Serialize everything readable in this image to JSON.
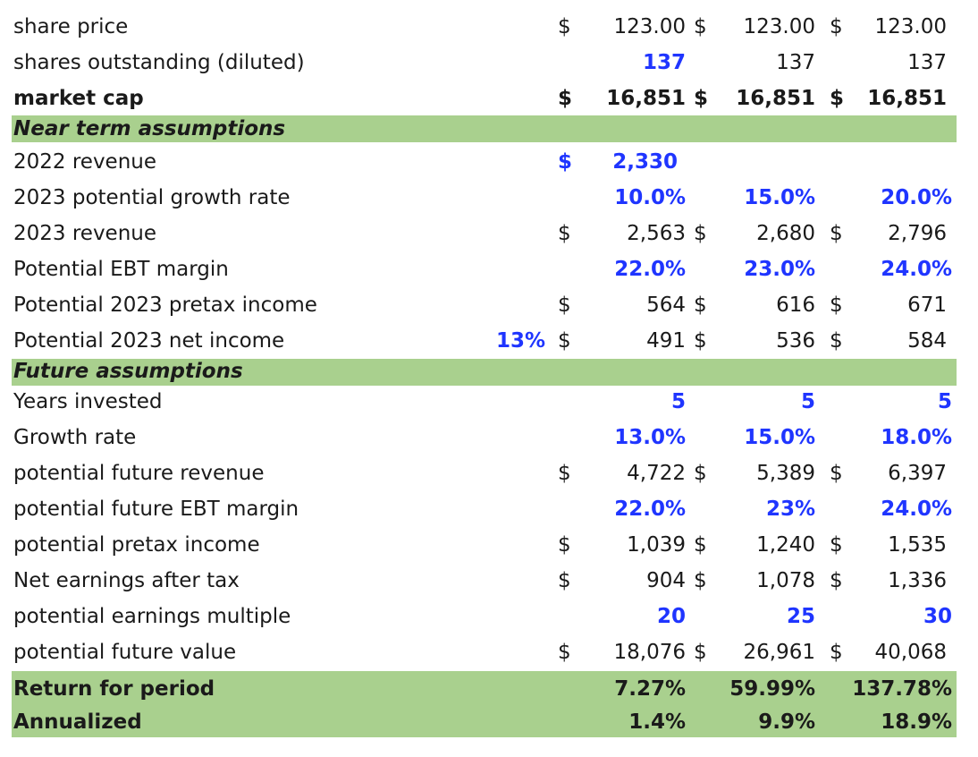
{
  "rows": {
    "share_price": {
      "label": "share price",
      "d1": "$",
      "v1": "123.00",
      "d2": "$",
      "v2": "123.00",
      "d3": "$",
      "v3": "123.00"
    },
    "shares_out": {
      "label": "shares outstanding (diluted)",
      "v1": "137",
      "v2": "137",
      "v3": "137"
    },
    "market_cap": {
      "label": "market cap",
      "d1": "$",
      "v1": "16,851",
      "d2": "$",
      "v2": "16,851",
      "d3": "$",
      "v3": "16,851"
    },
    "near_term": {
      "label": "Near term assumptions"
    },
    "rev_2022": {
      "label": "2022 revenue",
      "d1": "$",
      "v1": "2,330"
    },
    "growth_2023": {
      "label": "2023 potential growth rate",
      "v1": "10.0%",
      "v2": "15.0%",
      "v3": "20.0%"
    },
    "rev_2023": {
      "label": "2023 revenue",
      "d1": "$",
      "v1": "2,563",
      "d2": "$",
      "v2": "2,680",
      "d3": "$",
      "v3": "2,796"
    },
    "ebt_margin": {
      "label": "Potential EBT margin",
      "v1": "22.0%",
      "v2": "23.0%",
      "v3": "24.0%"
    },
    "pretax_2023": {
      "label": "Potential 2023 pretax income",
      "d1": "$",
      "v1": "564",
      "d2": "$",
      "v2": "616",
      "d3": "$",
      "v3": "671"
    },
    "net_2023": {
      "label": "Potential 2023 net income",
      "pct": "13%",
      "d1": "$",
      "v1": "491",
      "d2": "$",
      "v2": "536",
      "d3": "$",
      "v3": "584"
    },
    "future": {
      "label": "Future assumptions"
    },
    "years": {
      "label": "Years invested",
      "v1": "5",
      "v2": "5",
      "v3": "5"
    },
    "growth": {
      "label": "Growth rate",
      "v1": "13.0%",
      "v2": "15.0%",
      "v3": "18.0%"
    },
    "fut_rev": {
      "label": "potential future revenue",
      "d1": "$",
      "v1": "4,722",
      "d2": "$",
      "v2": "5,389",
      "d3": "$",
      "v3": "6,397"
    },
    "fut_ebt": {
      "label": "potential future EBT margin",
      "v1": "22.0%",
      "v2": "23%",
      "v3": "24.0%"
    },
    "fut_pretax": {
      "label": "potential pretax income",
      "d1": "$",
      "v1": "1,039",
      "d2": "$",
      "v2": "1,240",
      "d3": "$",
      "v3": "1,535"
    },
    "net_after_tax": {
      "label": "Net earnings after tax",
      "d1": "$",
      "v1": "904",
      "d2": "$",
      "v2": "1,078",
      "d3": "$",
      "v3": "1,336"
    },
    "multiple": {
      "label": "potential earnings multiple",
      "v1": "20",
      "v2": "25",
      "v3": "30"
    },
    "fut_value": {
      "label": "potential future value",
      "d1": "$",
      "v1": "18,076",
      "d2": "$",
      "v2": "26,961",
      "d3": "$",
      "v3": "40,068"
    },
    "return_period": {
      "label": "Return for period",
      "v1": "7.27%",
      "v2": "59.99%",
      "v3": "137.78%"
    },
    "annualized": {
      "label": "Annualized",
      "v1": "1.4%",
      "v2": "9.9%",
      "v3": "18.9%"
    }
  },
  "colors": {
    "section_fill": "#a9d08e",
    "input_blue": "#1f35ff",
    "text": "#1a1a1a"
  }
}
